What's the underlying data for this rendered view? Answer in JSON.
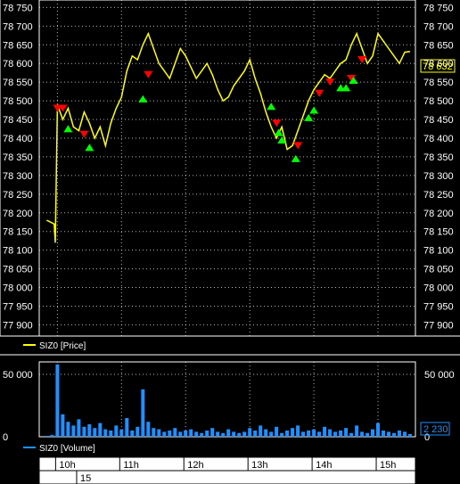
{
  "colors": {
    "background": "#000000",
    "frame": "#ffffff",
    "grid": "#ffffff",
    "price": "#ffff00",
    "volume": "#1e90ff",
    "buy": "#00ff00",
    "sell": "#ff0000",
    "last_price_label": "#ffff00",
    "last_volume_label": "#1e90ff"
  },
  "chart_data": [
    {
      "type": "line",
      "pane": "price",
      "series": [
        {
          "name": "SIZ0 [Price]",
          "color": "#ffff00"
        }
      ],
      "legend": "SIZ0 [Price]",
      "legend_position": "bottom-left",
      "ylim": [
        77870,
        78770
      ],
      "y_ticks": [
        "78 750",
        "78 700",
        "78 650",
        "78 600",
        "78 550",
        "78 500",
        "78 450",
        "78 400",
        "78 350",
        "78 300",
        "78 250",
        "78 200",
        "78 150",
        "78 100",
        "78 050",
        "78 000",
        "77 950",
        "77 900"
      ],
      "last_value_label": "78 632",
      "grid": true,
      "x": [
        "09:50",
        "09:57",
        "09:58",
        "10:00",
        "10:05",
        "10:10",
        "10:15",
        "10:20",
        "10:25",
        "10:30",
        "10:35",
        "10:40",
        "10:45",
        "10:50",
        "10:55",
        "11:00",
        "11:05",
        "11:10",
        "11:15",
        "11:20",
        "11:25",
        "11:30",
        "11:35",
        "11:40",
        "11:45",
        "11:50",
        "11:55",
        "12:00",
        "12:05",
        "12:10",
        "12:15",
        "12:20",
        "12:25",
        "12:30",
        "12:35",
        "12:40",
        "12:45",
        "12:50",
        "12:55",
        "13:00",
        "13:05",
        "13:10",
        "13:15",
        "13:20",
        "13:25",
        "13:30",
        "13:35",
        "13:40",
        "13:45",
        "13:50",
        "13:55",
        "14:00",
        "14:05",
        "14:10",
        "14:15",
        "14:20",
        "14:25",
        "14:30",
        "14:35",
        "14:40",
        "14:45",
        "14:50",
        "14:55",
        "15:00",
        "15:05",
        "15:10",
        "15:15",
        "15:20",
        "15:25",
        "15:30"
      ],
      "values": [
        78180,
        78170,
        78120,
        78490,
        78450,
        78480,
        78430,
        78420,
        78470,
        78440,
        78400,
        78430,
        78380,
        78440,
        78480,
        78510,
        78580,
        78620,
        78610,
        78650,
        78680,
        78640,
        78600,
        78580,
        78560,
        78600,
        78640,
        78620,
        78590,
        78560,
        78580,
        78600,
        78570,
        78530,
        78500,
        78510,
        78540,
        78560,
        78580,
        78610,
        78560,
        78520,
        78470,
        78430,
        78400,
        78430,
        78370,
        78380,
        78420,
        78460,
        78500,
        78530,
        78550,
        78570,
        78560,
        78580,
        78600,
        78610,
        78650,
        78680,
        78640,
        78600,
        78620,
        78680,
        78660,
        78640,
        78620,
        78600,
        78630,
        78632
      ],
      "sell_markers": [
        {
          "x": "10:00",
          "y": 78480
        },
        {
          "x": "10:05",
          "y": 78480
        },
        {
          "x": "10:25",
          "y": 78410
        },
        {
          "x": "11:25",
          "y": 78570
        },
        {
          "x": "13:25",
          "y": 78440
        },
        {
          "x": "13:45",
          "y": 78380
        },
        {
          "x": "14:05",
          "y": 78520
        },
        {
          "x": "14:15",
          "y": 78550
        },
        {
          "x": "14:35",
          "y": 78560
        },
        {
          "x": "14:45",
          "y": 78610
        }
      ],
      "buy_markers": [
        {
          "x": "10:10",
          "y": 78430
        },
        {
          "x": "10:30",
          "y": 78380
        },
        {
          "x": "11:20",
          "y": 78510
        },
        {
          "x": "13:20",
          "y": 78490
        },
        {
          "x": "13:27",
          "y": 78420
        },
        {
          "x": "13:30",
          "y": 78400
        },
        {
          "x": "13:43",
          "y": 78350
        },
        {
          "x": "13:55",
          "y": 78460
        },
        {
          "x": "14:00",
          "y": 78480
        },
        {
          "x": "14:25",
          "y": 78540
        },
        {
          "x": "14:30",
          "y": 78540
        },
        {
          "x": "14:37",
          "y": 78560
        }
      ]
    },
    {
      "type": "bar",
      "pane": "volume",
      "series": [
        {
          "name": "SIZ0 [Volume]",
          "color": "#1e90ff"
        }
      ],
      "legend": "SIZ0 [Volume]",
      "legend_position": "bottom-left",
      "ylim": [
        0,
        60000
      ],
      "y_ticks": [
        "50 000",
        "0"
      ],
      "last_value_label": "2 230",
      "grid": true,
      "x": [
        "09:50",
        "09:55",
        "10:00",
        "10:05",
        "10:10",
        "10:15",
        "10:20",
        "10:25",
        "10:30",
        "10:35",
        "10:40",
        "10:45",
        "10:50",
        "10:55",
        "11:00",
        "11:05",
        "11:10",
        "11:15",
        "11:20",
        "11:25",
        "11:30",
        "11:35",
        "11:40",
        "11:45",
        "11:50",
        "11:55",
        "12:00",
        "12:05",
        "12:10",
        "12:15",
        "12:20",
        "12:25",
        "12:30",
        "12:35",
        "12:40",
        "12:45",
        "12:50",
        "12:55",
        "13:00",
        "13:05",
        "13:10",
        "13:15",
        "13:20",
        "13:25",
        "13:30",
        "13:35",
        "13:40",
        "13:45",
        "13:50",
        "13:55",
        "14:00",
        "14:05",
        "14:10",
        "14:15",
        "14:20",
        "14:25",
        "14:30",
        "14:35",
        "14:40",
        "14:45",
        "14:50",
        "14:55",
        "15:00",
        "15:05",
        "15:10",
        "15:15",
        "15:20",
        "15:25",
        "15:30"
      ],
      "values": [
        800,
        1500,
        58000,
        18000,
        12000,
        9000,
        14000,
        8000,
        10000,
        7000,
        11000,
        6000,
        5000,
        9000,
        6000,
        15000,
        5000,
        8000,
        38000,
        12000,
        7000,
        6000,
        4000,
        5000,
        7000,
        4000,
        5000,
        6000,
        4000,
        3000,
        5000,
        7000,
        4000,
        3000,
        6000,
        4000,
        3000,
        4000,
        7000,
        5000,
        9000,
        6000,
        4000,
        8000,
        3000,
        5000,
        7000,
        9000,
        4000,
        5000,
        6000,
        4000,
        8000,
        6000,
        4000,
        5000,
        7000,
        3000,
        9000,
        4000,
        3000,
        6000,
        11000,
        5000,
        4000,
        3000,
        5000,
        4000,
        2230
      ]
    }
  ],
  "time_axis": {
    "hours": [
      "10h",
      "11h",
      "12h",
      "13h",
      "14h",
      "15h"
    ],
    "day": "15"
  }
}
